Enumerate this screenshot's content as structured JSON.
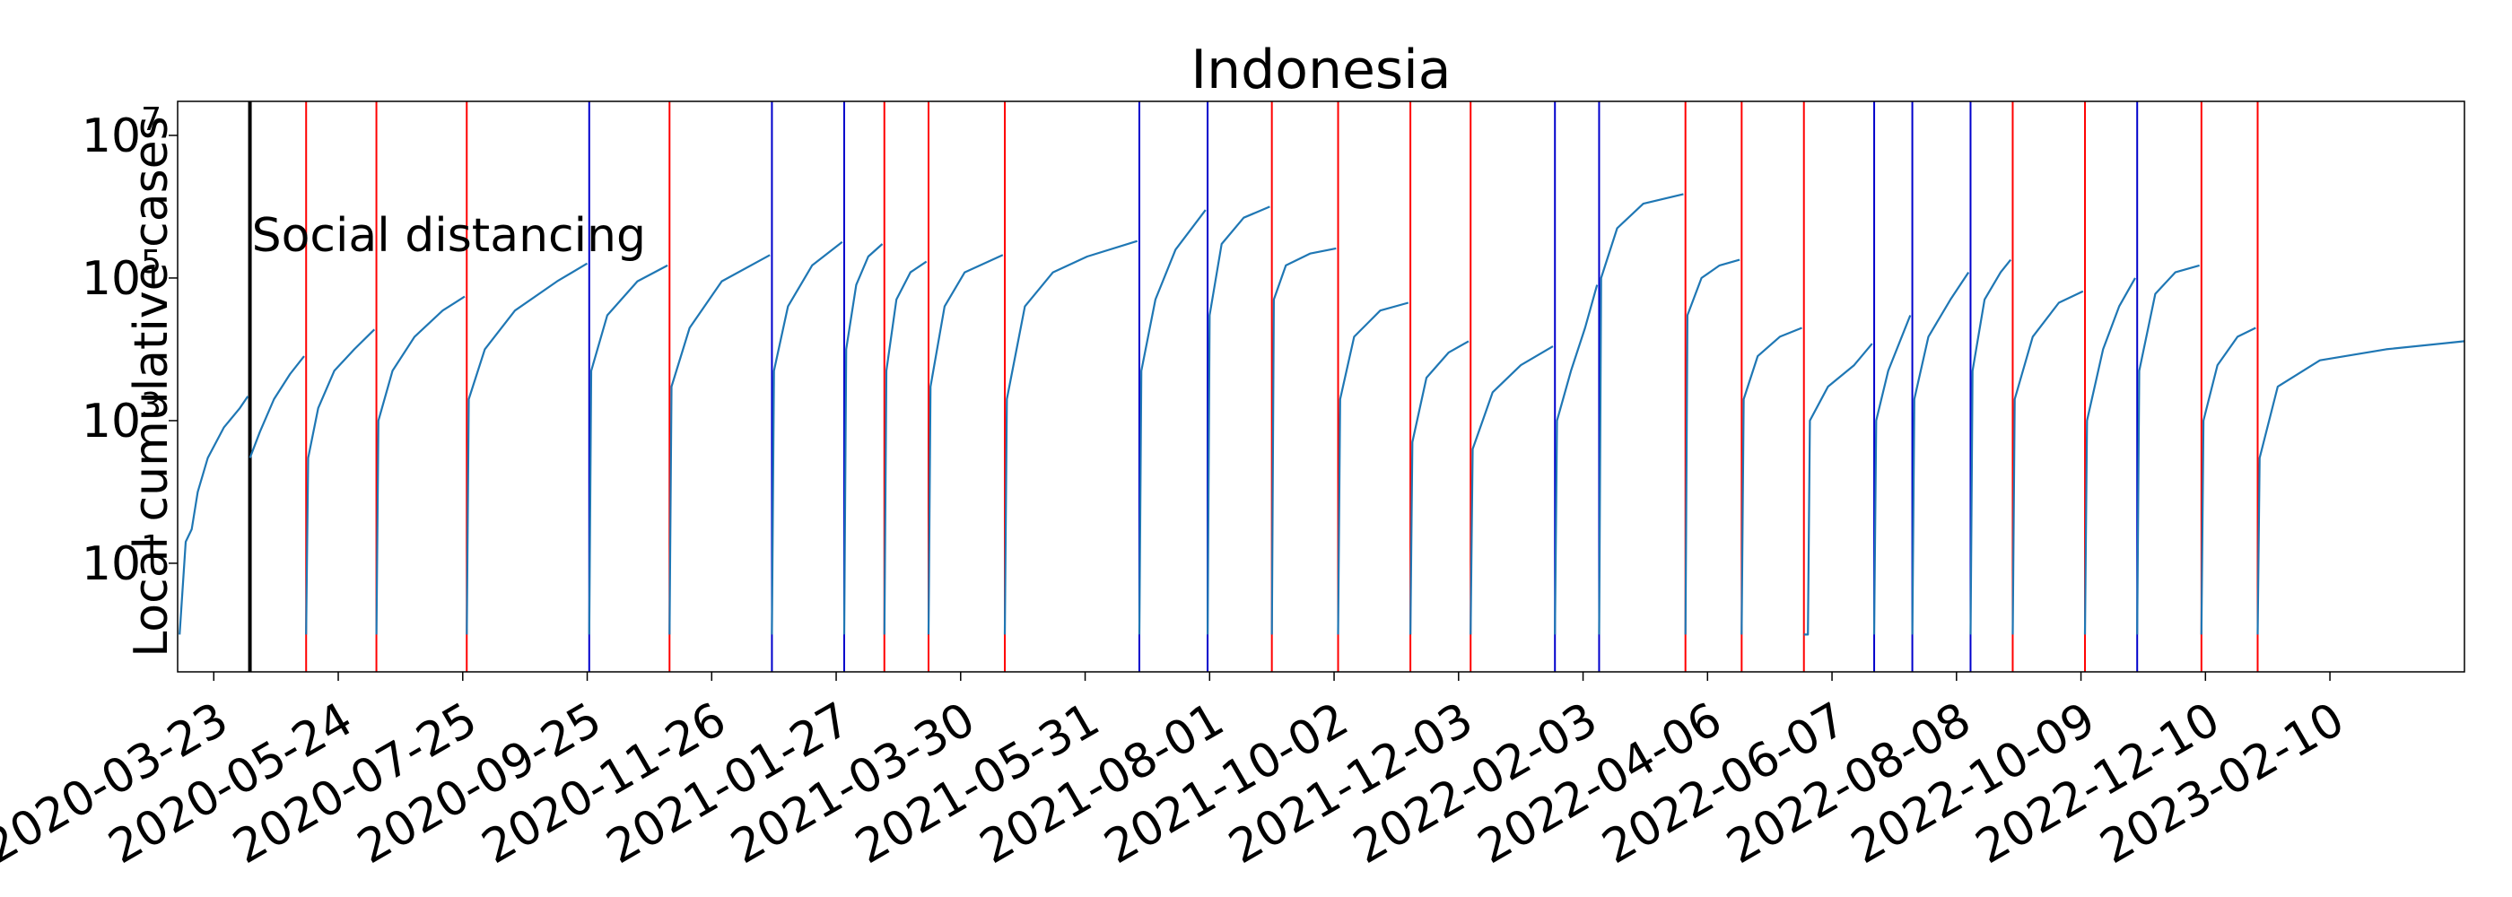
{
  "chart_data": {
    "type": "line",
    "title": "Indonesia",
    "xlabel": "",
    "ylabel": "Local cumulative cases",
    "yscale": "log",
    "ylim": [
      0.3,
      30000000
    ],
    "xlim": [
      "2020-03-05",
      "2023-04-18"
    ],
    "grid": false,
    "y_ticks": [
      {
        "base": "10",
        "exp": "1",
        "value": 10
      },
      {
        "base": "10",
        "exp": "3",
        "value": 1000
      },
      {
        "base": "10",
        "exp": "5",
        "value": 100000
      },
      {
        "base": "10",
        "exp": "7",
        "value": 10000000
      }
    ],
    "x_ticks": [
      "2020-03-23",
      "2020-05-24",
      "2020-07-25",
      "2020-09-25",
      "2020-11-26",
      "2021-01-27",
      "2021-03-30",
      "2021-05-31",
      "2021-08-01",
      "2021-10-02",
      "2021-12-03",
      "2022-02-03",
      "2022-04-06",
      "2022-06-07",
      "2022-08-08",
      "2022-10-09",
      "2022-12-10",
      "2023-02-10"
    ],
    "annotation": {
      "text": "Social distancing",
      "date": "2020-04-10",
      "value": 400000
    },
    "policy_line": {
      "date": "2020-04-10",
      "color": "#000000"
    },
    "red_lines": [
      "2020-05-08",
      "2020-06-12",
      "2020-07-27",
      "2020-11-05",
      "2021-02-20",
      "2021-03-14",
      "2021-04-21",
      "2021-09-01",
      "2021-10-04",
      "2021-11-09",
      "2021-12-09",
      "2022-03-26",
      "2022-04-23",
      "2022-05-24",
      "2022-09-05",
      "2022-10-11",
      "2022-12-08",
      "2023-01-05"
    ],
    "blue_lines": [
      "2020-09-26",
      "2020-12-26",
      "2021-01-31",
      "2021-06-27",
      "2021-07-31",
      "2022-01-20",
      "2022-02-11",
      "2022-06-28",
      "2022-07-17",
      "2022-08-15",
      "2022-11-06"
    ],
    "series": [
      {
        "color": "#1f77b4",
        "segments": [
          [
            [
              "2020-03-06",
              1
            ],
            [
              "2020-03-09",
              20
            ],
            [
              "2020-03-12",
              30
            ],
            [
              "2020-03-15",
              100
            ],
            [
              "2020-03-20",
              300
            ],
            [
              "2020-03-28",
              800
            ],
            [
              "2020-04-05",
              1500
            ],
            [
              "2020-04-09",
              2200
            ]
          ],
          [
            [
              "2020-04-10",
              300
            ],
            [
              "2020-04-15",
              700
            ],
            [
              "2020-04-22",
              2000
            ],
            [
              "2020-04-30",
              4500
            ],
            [
              "2020-05-07",
              8000
            ]
          ],
          [
            [
              "2020-05-08",
              1
            ],
            [
              "2020-05-09",
              300
            ],
            [
              "2020-05-14",
              1500
            ],
            [
              "2020-05-22",
              5000
            ],
            [
              "2020-06-01",
              10000
            ],
            [
              "2020-06-11",
              19000
            ]
          ],
          [
            [
              "2020-06-12",
              1
            ],
            [
              "2020-06-13",
              1000
            ],
            [
              "2020-06-20",
              5000
            ],
            [
              "2020-07-01",
              15000
            ],
            [
              "2020-07-15",
              35000
            ],
            [
              "2020-07-26",
              55000
            ]
          ],
          [
            [
              "2020-07-27",
              1
            ],
            [
              "2020-07-28",
              2000
            ],
            [
              "2020-08-05",
              10000
            ],
            [
              "2020-08-20",
              35000
            ],
            [
              "2020-09-10",
              90000
            ],
            [
              "2020-09-25",
              160000
            ]
          ],
          [
            [
              "2020-09-26",
              1
            ],
            [
              "2020-09-27",
              5000
            ],
            [
              "2020-10-05",
              30000
            ],
            [
              "2020-10-20",
              90000
            ],
            [
              "2020-11-04",
              150000
            ]
          ],
          [
            [
              "2020-11-05",
              1
            ],
            [
              "2020-11-06",
              3000
            ],
            [
              "2020-11-15",
              20000
            ],
            [
              "2020-12-01",
              90000
            ],
            [
              "2020-12-25",
              210000
            ]
          ],
          [
            [
              "2020-12-26",
              1
            ],
            [
              "2020-12-27",
              5000
            ],
            [
              "2021-01-03",
              40000
            ],
            [
              "2021-01-15",
              150000
            ],
            [
              "2021-01-30",
              320000
            ]
          ],
          [
            [
              "2021-01-31",
              1
            ],
            [
              "2021-02-01",
              10000
            ],
            [
              "2021-02-06",
              80000
            ],
            [
              "2021-02-12",
              200000
            ],
            [
              "2021-02-19",
              300000
            ]
          ],
          [
            [
              "2021-02-20",
              1
            ],
            [
              "2021-02-21",
              5000
            ],
            [
              "2021-02-26",
              50000
            ],
            [
              "2021-03-05",
              120000
            ],
            [
              "2021-03-13",
              170000
            ]
          ],
          [
            [
              "2021-03-14",
              1
            ],
            [
              "2021-03-15",
              3000
            ],
            [
              "2021-03-22",
              40000
            ],
            [
              "2021-04-01",
              120000
            ],
            [
              "2021-04-20",
              210000
            ]
          ],
          [
            [
              "2021-04-21",
              1
            ],
            [
              "2021-04-22",
              2000
            ],
            [
              "2021-05-01",
              40000
            ],
            [
              "2021-05-15",
              120000
            ],
            [
              "2021-06-01",
              200000
            ],
            [
              "2021-06-26",
              330000
            ]
          ],
          [
            [
              "2021-06-27",
              1
            ],
            [
              "2021-06-28",
              5000
            ],
            [
              "2021-07-05",
              50000
            ],
            [
              "2021-07-15",
              250000
            ],
            [
              "2021-07-30",
              900000
            ]
          ],
          [
            [
              "2021-07-31",
              1
            ],
            [
              "2021-08-01",
              30000
            ],
            [
              "2021-08-07",
              300000
            ],
            [
              "2021-08-18",
              700000
            ],
            [
              "2021-08-31",
              1000000
            ]
          ],
          [
            [
              "2021-09-01",
              1
            ],
            [
              "2021-09-02",
              50000
            ],
            [
              "2021-09-08",
              150000
            ],
            [
              "2021-09-20",
              220000
            ],
            [
              "2021-10-03",
              260000
            ]
          ],
          [
            [
              "2021-10-04",
              1
            ],
            [
              "2021-10-05",
              2000
            ],
            [
              "2021-10-12",
              15000
            ],
            [
              "2021-10-25",
              35000
            ],
            [
              "2021-11-08",
              45000
            ]
          ],
          [
            [
              "2021-11-09",
              1
            ],
            [
              "2021-11-10",
              500
            ],
            [
              "2021-11-17",
              4000
            ],
            [
              "2021-11-28",
              9000
            ],
            [
              "2021-12-08",
              13000
            ]
          ],
          [
            [
              "2021-12-09",
              1
            ],
            [
              "2021-12-10",
              400
            ],
            [
              "2021-12-20",
              2500
            ],
            [
              "2022-01-03",
              6000
            ],
            [
              "2022-01-19",
              11000
            ]
          ],
          [
            [
              "2022-01-20",
              1
            ],
            [
              "2022-01-21",
              1000
            ],
            [
              "2022-01-28",
              5000
            ],
            [
              "2022-02-04",
              20000
            ],
            [
              "2022-02-10",
              80000
            ]
          ],
          [
            [
              "2022-02-11",
              1
            ],
            [
              "2022-02-12",
              100000
            ],
            [
              "2022-02-20",
              500000
            ],
            [
              "2022-03-05",
              1100000
            ],
            [
              "2022-03-25",
              1500000
            ]
          ],
          [
            [
              "2022-03-26",
              1
            ],
            [
              "2022-03-27",
              30000
            ],
            [
              "2022-04-03",
              100000
            ],
            [
              "2022-04-12",
              150000
            ],
            [
              "2022-04-22",
              180000
            ]
          ],
          [
            [
              "2022-04-23",
              1
            ],
            [
              "2022-04-24",
              2000
            ],
            [
              "2022-05-01",
              8000
            ],
            [
              "2022-05-12",
              15000
            ],
            [
              "2022-05-23",
              20000
            ]
          ],
          [
            [
              "2022-05-24",
              1
            ],
            [
              "2022-05-26",
              1
            ],
            [
              "2022-05-27",
              1000
            ],
            [
              "2022-06-05",
              3000
            ],
            [
              "2022-06-18",
              6000
            ],
            [
              "2022-06-27",
              12000
            ]
          ],
          [
            [
              "2022-06-28",
              1
            ],
            [
              "2022-06-29",
              1000
            ],
            [
              "2022-07-05",
              5000
            ],
            [
              "2022-07-16",
              30000
            ]
          ],
          [
            [
              "2022-07-17",
              1
            ],
            [
              "2022-07-18",
              2000
            ],
            [
              "2022-07-25",
              15000
            ],
            [
              "2022-08-05",
              50000
            ],
            [
              "2022-08-14",
              120000
            ]
          ],
          [
            [
              "2022-08-15",
              1
            ],
            [
              "2022-08-16",
              5000
            ],
            [
              "2022-08-22",
              50000
            ],
            [
              "2022-08-30",
              120000
            ],
            [
              "2022-09-04",
              180000
            ]
          ],
          [
            [
              "2022-09-05",
              1
            ],
            [
              "2022-09-06",
              2000
            ],
            [
              "2022-09-15",
              15000
            ],
            [
              "2022-09-28",
              45000
            ],
            [
              "2022-10-10",
              65000
            ]
          ],
          [
            [
              "2022-10-11",
              1
            ],
            [
              "2022-10-12",
              1000
            ],
            [
              "2022-10-20",
              10000
            ],
            [
              "2022-10-28",
              40000
            ],
            [
              "2022-11-05",
              100000
            ]
          ],
          [
            [
              "2022-11-06",
              1
            ],
            [
              "2022-11-07",
              5000
            ],
            [
              "2022-11-15",
              60000
            ],
            [
              "2022-11-25",
              120000
            ],
            [
              "2022-12-07",
              150000
            ]
          ],
          [
            [
              "2022-12-08",
              1
            ],
            [
              "2022-12-09",
              1000
            ],
            [
              "2022-12-16",
              6000
            ],
            [
              "2022-12-26",
              15000
            ],
            [
              "2023-01-04",
              20000
            ]
          ],
          [
            [
              "2023-01-05",
              1
            ],
            [
              "2023-01-06",
              300
            ],
            [
              "2023-01-15",
              3000
            ],
            [
              "2023-02-05",
              7000
            ],
            [
              "2023-03-10",
              10000
            ],
            [
              "2023-04-18",
              13000
            ]
          ]
        ]
      }
    ]
  }
}
